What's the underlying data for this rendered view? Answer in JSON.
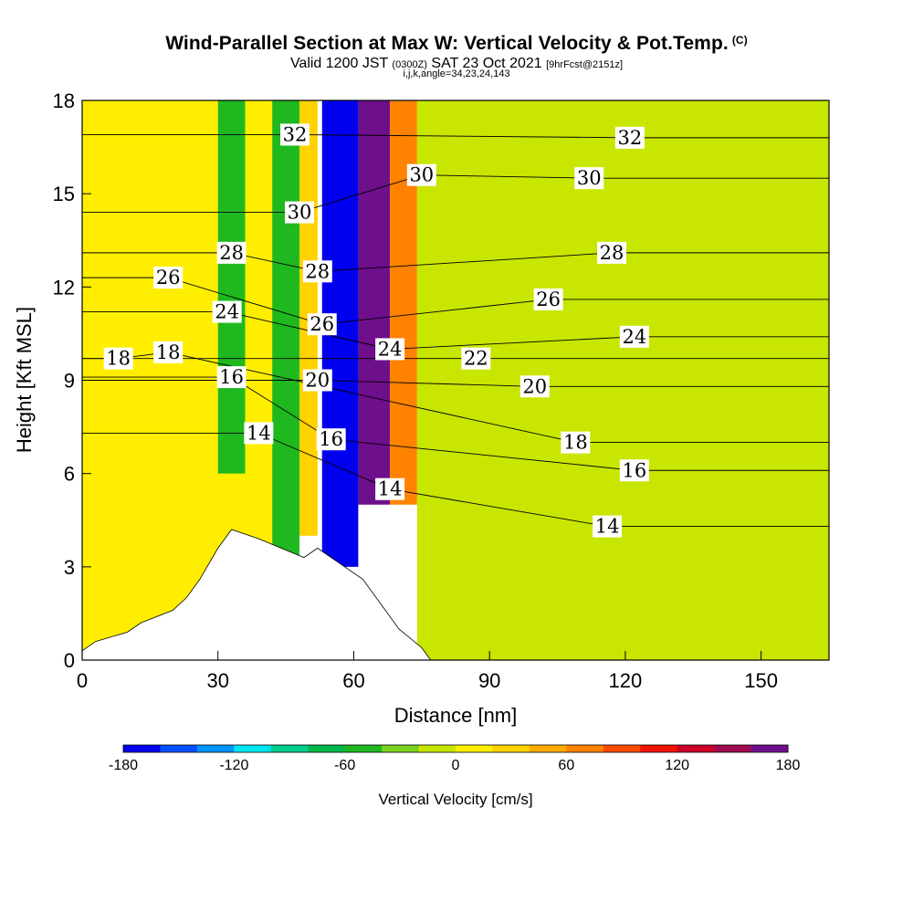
{
  "header": {
    "title": "Wind-Parallel Section at Max W: Vertical Velocity & Pot.Temp.",
    "title_mark": "(C)",
    "subtitle_a": "Valid 1200 JST",
    "subtitle_b": "(0300Z)",
    "subtitle_c": "SAT 23 Oct 2021",
    "subtitle_d": "[9hrFcst@2151z]",
    "subline": "i,j,k,angle=34,23,24,143"
  },
  "chart_data": {
    "type": "heatmap",
    "xlabel": "Distance [nm]",
    "ylabel": "Height [Kft MSL]",
    "xlim": [
      0,
      165
    ],
    "ylim": [
      0,
      18
    ],
    "x_ticks": [
      0,
      30,
      60,
      90,
      120,
      150
    ],
    "y_ticks": [
      0,
      3,
      6,
      9,
      12,
      15,
      18
    ],
    "colorbar": {
      "label": "Vertical Velocity [cm/s]",
      "range": [
        -180,
        180
      ],
      "ticks": [
        -180,
        -120,
        -60,
        0,
        60,
        120,
        180
      ],
      "colors": [
        "#0000ee",
        "#0050ff",
        "#0096ff",
        "#00e6f0",
        "#00cc8c",
        "#00b84a",
        "#1fb81f",
        "#78d21e",
        "#c8e600",
        "#ffee00",
        "#ffd200",
        "#ffaa00",
        "#ff8200",
        "#ff4b00",
        "#f01400",
        "#cc0028",
        "#a00a50",
        "#6e0f8c"
      ]
    },
    "velocity_bands": [
      {
        "x": [
          0,
          47
        ],
        "y": [
          0,
          18
        ],
        "w": 0
      },
      {
        "x": [
          30,
          36
        ],
        "y": [
          6,
          18
        ],
        "w": -60
      },
      {
        "x": [
          42,
          48
        ],
        "y": [
          3,
          18
        ],
        "w": -60
      },
      {
        "x": [
          48,
          52
        ],
        "y": [
          4,
          18
        ],
        "w": 30
      },
      {
        "x": [
          53,
          61
        ],
        "y": [
          3,
          18
        ],
        "w": -170
      },
      {
        "x": [
          61,
          68
        ],
        "y": [
          5,
          18
        ],
        "w": 170
      },
      {
        "x": [
          68,
          74
        ],
        "y": [
          5,
          18
        ],
        "w": 60
      },
      {
        "x": [
          74,
          165
        ],
        "y": [
          0,
          18
        ],
        "w": -20
      }
    ],
    "terrain": [
      [
        0,
        0.3
      ],
      [
        3,
        0.6
      ],
      [
        10,
        0.9
      ],
      [
        13,
        1.2
      ],
      [
        20,
        1.6
      ],
      [
        23,
        2.0
      ],
      [
        26,
        2.6
      ],
      [
        30,
        3.6
      ],
      [
        33,
        4.2
      ],
      [
        39,
        3.9
      ],
      [
        49,
        3.3
      ],
      [
        52,
        3.6
      ],
      [
        62,
        2.6
      ],
      [
        65,
        2.0
      ],
      [
        70,
        1.0
      ],
      [
        75,
        0.4
      ],
      [
        77,
        0
      ]
    ],
    "isentrope_labels": [
      {
        "value": "32",
        "x": 47,
        "y": 16.9
      },
      {
        "value": "32",
        "x": 121,
        "y": 16.8
      },
      {
        "value": "30",
        "x": 75,
        "y": 15.6
      },
      {
        "value": "30",
        "x": 112,
        "y": 15.5
      },
      {
        "value": "30",
        "x": 48,
        "y": 14.4
      },
      {
        "value": "28",
        "x": 33,
        "y": 13.1
      },
      {
        "value": "28",
        "x": 52,
        "y": 12.5
      },
      {
        "value": "28",
        "x": 117,
        "y": 13.1
      },
      {
        "value": "26",
        "x": 19,
        "y": 12.3
      },
      {
        "value": "26",
        "x": 103,
        "y": 11.6
      },
      {
        "value": "26",
        "x": 53,
        "y": 10.8
      },
      {
        "value": "24",
        "x": 32,
        "y": 11.2
      },
      {
        "value": "24",
        "x": 68,
        "y": 10.0
      },
      {
        "value": "24",
        "x": 122,
        "y": 10.4
      },
      {
        "value": "22",
        "x": 87,
        "y": 9.7
      },
      {
        "value": "20",
        "x": 52,
        "y": 9.0
      },
      {
        "value": "20",
        "x": 100,
        "y": 8.8
      },
      {
        "value": "18",
        "x": 8,
        "y": 9.7
      },
      {
        "value": "18",
        "x": 19,
        "y": 9.9
      },
      {
        "value": "18",
        "x": 109,
        "y": 7.0
      },
      {
        "value": "16",
        "x": 33,
        "y": 9.1
      },
      {
        "value": "16",
        "x": 55,
        "y": 7.1
      },
      {
        "value": "16",
        "x": 122,
        "y": 6.1
      },
      {
        "value": "14",
        "x": 39,
        "y": 7.3
      },
      {
        "value": "14",
        "x": 68,
        "y": 5.5
      },
      {
        "value": "14",
        "x": 116,
        "y": 4.3
      }
    ]
  }
}
